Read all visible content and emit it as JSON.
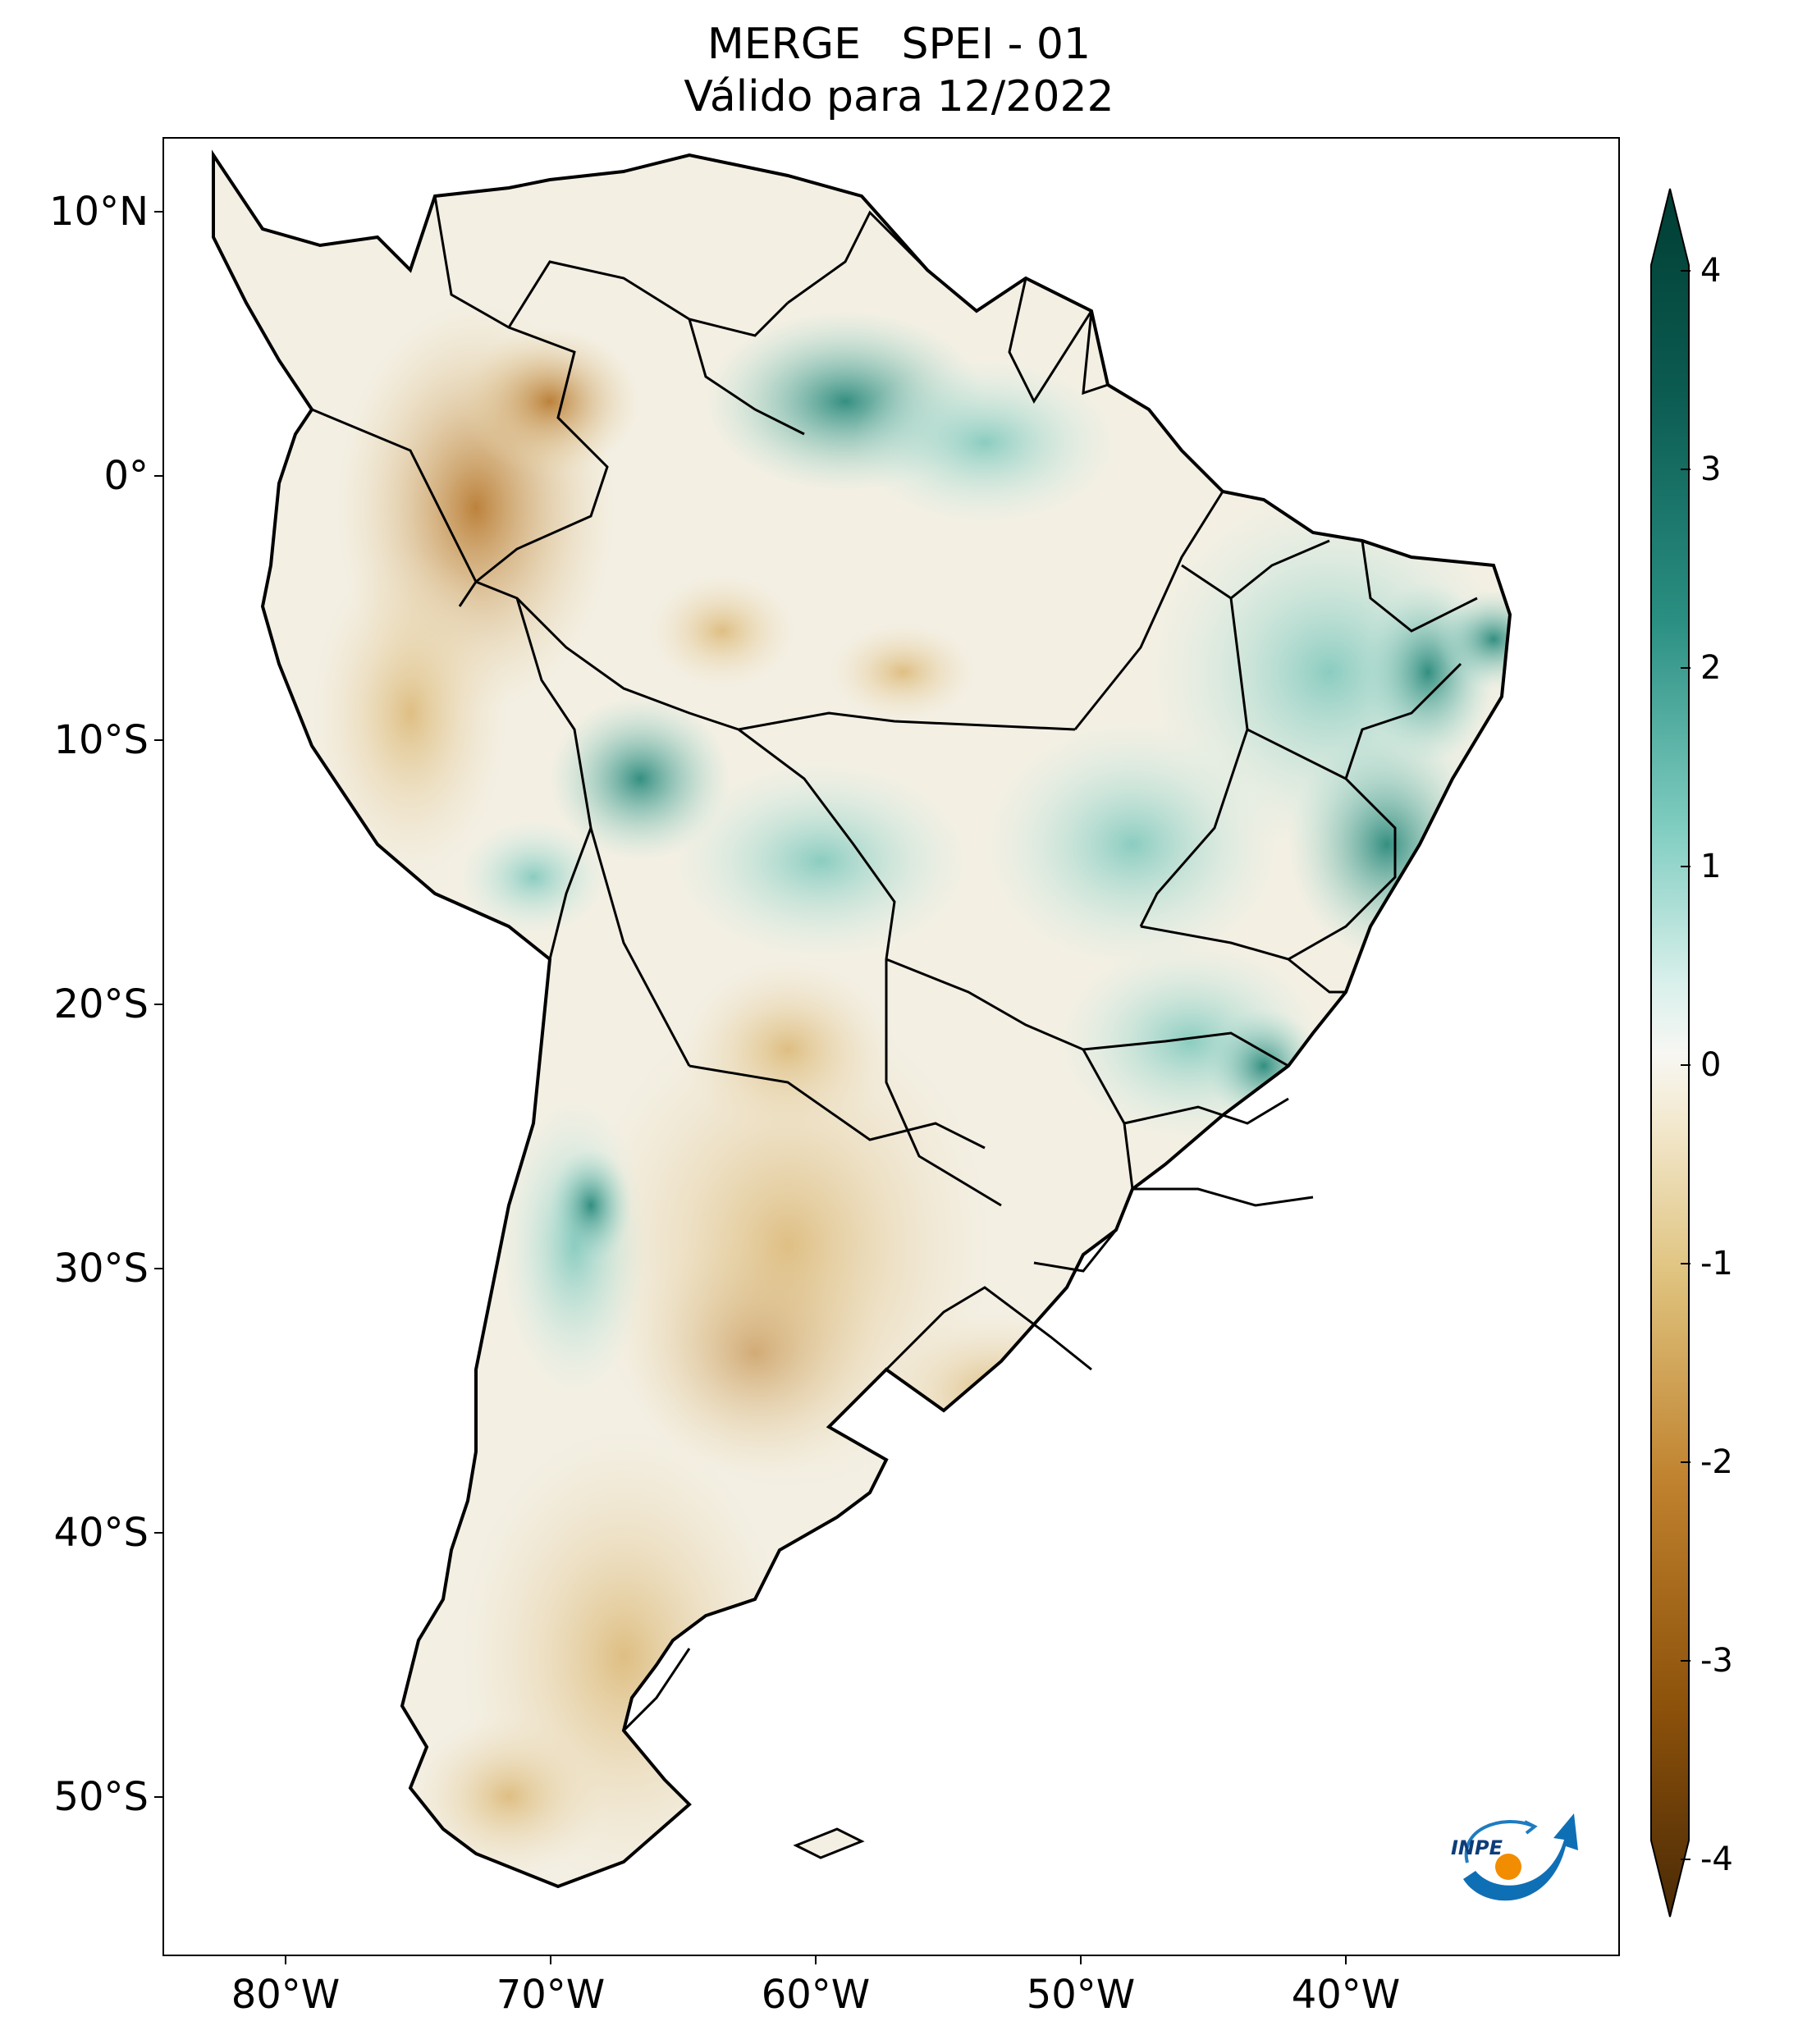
{
  "header": {
    "title_line1": "MERGE   SPEI - 01",
    "title_line2": "Válido para 12/2022"
  },
  "axes": {
    "lat_ticks": [
      "10°N",
      "0°",
      "10°S",
      "20°S",
      "30°S",
      "40°S",
      "50°S"
    ],
    "lon_ticks": [
      "80°W",
      "70°W",
      "60°W",
      "50°W",
      "40°W"
    ],
    "lat_range": [
      -56,
      12.5
    ],
    "lon_range": [
      -85,
      -30
    ]
  },
  "colorbar": {
    "labels": [
      "4",
      "3",
      "2",
      "1",
      "0",
      "-1",
      "-2",
      "-3",
      "-4"
    ],
    "range": [
      -4,
      4
    ],
    "colors": {
      "max": "#00382f",
      "high": "#1a7a6e",
      "mid_high": "#7ecdc1",
      "neutral": "#f7f7f3",
      "mid_low": "#e8cf98",
      "low": "#a3631d",
      "min": "#4a2a06"
    }
  },
  "logo": {
    "text": "INPE"
  },
  "map_colors": {
    "ocean": "#ffffff",
    "land_dry": "#e9d6a8",
    "land_very_dry": "#c4914a",
    "land_wet": "#a6dcd2",
    "land_very_wet": "#3d9d8f",
    "border": "#000000"
  }
}
